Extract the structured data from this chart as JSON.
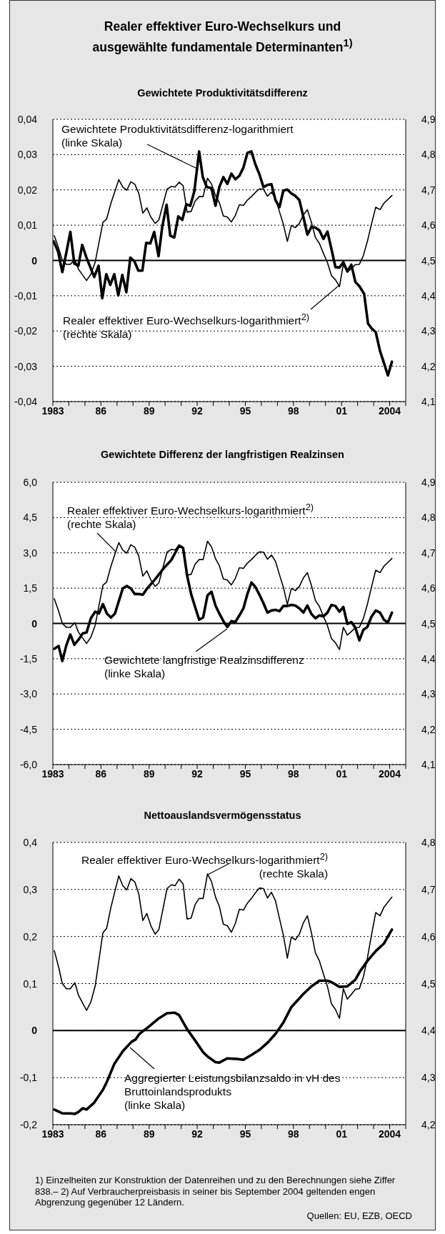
{
  "chart_data": [
    {
      "type": "line",
      "title": "Realer effektiver Euro-Wechselkurs und ausgewählte fundamentale Determinanten$^{1)}$",
      "subtitle": "Gewichtete Produktivitätsdifferenz",
      "series": [
        {
          "name": "Gewichtete Produktivitätsdifferenz-logarithmiert (linke Skala)",
          "color": "#000000",
          "x": [
            1983.05,
            1983.32,
            1983.59,
            1983.84,
            1984.09,
            1984.34,
            1984.59,
            1984.83,
            1985.08,
            1985.37,
            1985.58,
            1985.85,
            1986.08,
            1986.33,
            1986.58,
            1986.83,
            1987.08,
            1987.33,
            1987.58,
            1987.83,
            1988.08,
            1988.33,
            1988.58,
            1988.82,
            1989.07,
            1989.32,
            1989.59,
            1989.82,
            1990.09,
            1990.32,
            1990.57,
            1990.82,
            1991.07,
            1991.32,
            1991.57,
            1991.82,
            1992.12,
            1992.35,
            1992.6,
            1992.89,
            1993.14,
            1993.38,
            1993.63,
            1993.88,
            1994.13,
            1994.38,
            1994.63,
            1994.88,
            1995.13,
            1995.38,
            1995.63,
            1995.88,
            1996.13,
            1996.38,
            1996.63,
            1996.88,
            1997.13,
            1997.37,
            1997.62,
            1997.87,
            1998.12,
            1998.37,
            1998.62,
            1998.87,
            1999.12,
            1999.37,
            1999.62,
            1999.87,
            2000.12,
            2000.37,
            2000.62,
            2000.87,
            2001.11,
            2001.36,
            2001.61,
            2001.86,
            2002.11,
            2002.41,
            2002.65,
            2002.86,
            2003.13,
            2003.4,
            2003.66,
            2003.89,
            2004.14
          ],
          "values": [
            0.0054,
            0.0026,
            -0.0033,
            0.0022,
            0.0081,
            -0.0009,
            -0.0015,
            0.0044,
            0.001,
            -0.0023,
            -0.0047,
            -0.0015,
            -0.0107,
            -0.0039,
            -0.0069,
            -0.0039,
            -0.0099,
            -0.0041,
            -0.009,
            0.0008,
            -0.0002,
            -0.0029,
            -0.0029,
            0.005,
            0.0048,
            0.0081,
            0.0012,
            0.0095,
            0.0158,
            0.007,
            0.0065,
            0.0125,
            0.0115,
            0.0159,
            0.0155,
            0.0196,
            0.0309,
            0.0236,
            0.0208,
            0.0205,
            0.0155,
            0.0208,
            0.0236,
            0.0217,
            0.0246,
            0.023,
            0.024,
            0.0263,
            0.0305,
            0.0309,
            0.0272,
            0.0244,
            0.0208,
            0.0214,
            0.0216,
            0.0171,
            0.0151,
            0.0198,
            0.0201,
            0.019,
            0.0183,
            0.0171,
            0.0123,
            0.0073,
            0.0095,
            0.0093,
            0.0085,
            0.0061,
            0.0082,
            0.0032,
            -0.0019,
            -0.002,
            -0.0005,
            -0.0031,
            -0.0012,
            -0.0061,
            -0.0073,
            -0.0095,
            -0.0179,
            -0.0192,
            -0.0203,
            -0.0257,
            -0.0293,
            -0.0326,
            -0.0287
          ]
        },
        {
          "name": "Realer effektiver Euro-Wechselkurs-logarithmiert$^{2)}$ (rechte Skala)",
          "color": "#000000",
          "axis": "y2",
          "x": [
            1983.09,
            1983.36,
            1983.59,
            1983.84,
            1984.09,
            1984.37,
            1984.6,
            1985.1,
            1985.37,
            1985.64,
            1986.12,
            1986.35,
            1986.62,
            1987.11,
            1987.36,
            1987.61,
            1987.86,
            1988.11,
            1988.36,
            1988.61,
            1988.86,
            1989.11,
            1989.38,
            1989.61,
            1990.12,
            1990.39,
            1990.62,
            1990.87,
            1991.12,
            1991.37,
            1991.62,
            1991.87,
            1992.12,
            1992.37,
            1992.64,
            1992.89,
            1993.14,
            1993.38,
            1993.63,
            1993.88,
            1994.13,
            1994.38,
            1994.63,
            1994.88,
            1995.13,
            1995.38,
            1995.63,
            1995.88,
            1996.13,
            1996.38,
            1996.63,
            1996.88,
            1997.13,
            1997.37,
            1997.62,
            1997.87,
            1998.12,
            1998.37,
            1998.62,
            1998.87,
            1999.12,
            1999.37,
            1999.62,
            1999.87,
            2000.12,
            2000.37,
            2000.62,
            2000.87,
            2001.11,
            2001.36,
            2001.61,
            2001.86,
            2002.11,
            2002.36,
            2002.61,
            2002.86,
            2003.13,
            2003.4,
            2003.64,
            2004.14
          ],
          "values": [
            4.57,
            4.535,
            4.5,
            4.489,
            4.489,
            4.502,
            4.475,
            4.443,
            4.461,
            4.495,
            4.608,
            4.617,
            4.662,
            4.729,
            4.708,
            4.699,
            4.723,
            4.716,
            4.69,
            4.634,
            4.649,
            4.623,
            4.605,
            4.615,
            4.702,
            4.71,
            4.708,
            4.722,
            4.712,
            4.637,
            4.639,
            4.668,
            4.681,
            4.681,
            4.733,
            4.717,
            4.684,
            4.664,
            4.626,
            4.623,
            4.609,
            4.628,
            4.658,
            4.656,
            4.671,
            4.681,
            4.693,
            4.703,
            4.702,
            4.682,
            4.694,
            4.676,
            4.638,
            4.603,
            4.554,
            4.599,
            4.593,
            4.605,
            4.629,
            4.644,
            4.608,
            4.565,
            4.548,
            4.52,
            4.494,
            4.457,
            4.445,
            4.426,
            4.489,
            4.467,
            4.477,
            4.488,
            4.489,
            4.514,
            4.554,
            4.602,
            4.651,
            4.644,
            4.662,
            4.684
          ]
        }
      ],
      "xlim": [
        1983,
        2005
      ],
      "xticks": [
        {
          "value": 1983,
          "label": "1983"
        },
        {
          "value": 1984,
          "label": null
        },
        {
          "value": 1985,
          "label": null
        },
        {
          "value": 1986,
          "label": "86"
        },
        {
          "value": 1987,
          "label": null
        },
        {
          "value": 1988,
          "label": null
        },
        {
          "value": 1989,
          "label": "89"
        },
        {
          "value": 1990,
          "label": null
        },
        {
          "value": 1991,
          "label": null
        },
        {
          "value": 1992,
          "label": "92"
        },
        {
          "value": 1993,
          "label": null
        },
        {
          "value": 1994,
          "label": null
        },
        {
          "value": 1995,
          "label": "95"
        },
        {
          "value": 1996,
          "label": null
        },
        {
          "value": 1997,
          "label": null
        },
        {
          "value": 1998,
          "label": "98"
        },
        {
          "value": 1999,
          "label": null
        },
        {
          "value": 2000,
          "label": null
        },
        {
          "value": 2001,
          "label": "01"
        },
        {
          "value": 2002,
          "label": null
        },
        {
          "value": 2003,
          "label": null
        },
        {
          "value": 2004,
          "label": "2004"
        },
        {
          "value": 2005,
          "label": null
        }
      ],
      "ylim": [
        -0.04,
        0.04
      ],
      "yticks": [
        {
          "value": -0.04,
          "label": "-0,04"
        },
        {
          "value": -0.03,
          "label": "-0,03"
        },
        {
          "value": -0.02,
          "label": "-0,02"
        },
        {
          "value": -0.01,
          "label": "-0,01"
        },
        {
          "value": 0,
          "label": "0"
        },
        {
          "value": 0.01,
          "label": "0,01"
        },
        {
          "value": 0.02,
          "label": "0,02"
        },
        {
          "value": 0.03,
          "label": "0,03"
        },
        {
          "value": 0.04,
          "label": "0,04"
        }
      ],
      "y2lim": [
        4.1,
        4.9
      ],
      "y2ticks": [
        {
          "value": 4.1,
          "label": "4,1"
        },
        {
          "value": 4.2,
          "label": "4,2"
        },
        {
          "value": 4.3,
          "label": "4,3"
        },
        {
          "value": 4.4,
          "label": "4,4"
        },
        {
          "value": 4.5,
          "label": "4,5"
        },
        {
          "value": 4.6,
          "label": "4,6"
        },
        {
          "value": 4.7,
          "label": "4,7"
        },
        {
          "value": 4.8,
          "label": "4,8"
        },
        {
          "value": 4.9,
          "label": "4,9"
        }
      ],
      "grid": "y",
      "ref_lines": [
        {
          "axis": "y",
          "value": 0,
          "color": "#000000"
        }
      ]
    },
    {
      "type": "line",
      "title": "Gewichtete Differenz der langfristigen Realzinsen",
      "series": [
        {
          "name": "Gewichtete langfristige Realzinsdifferenz (linke Skala)",
          "color": "#000000",
          "x": [
            1983.09,
            1983.36,
            1983.59,
            1983.84,
            1984.09,
            1984.34,
            1984.6,
            1984.87,
            1985.1,
            1985.37,
            1985.64,
            1985.87,
            1986.12,
            1986.37,
            1986.62,
            1986.87,
            1987.36,
            1987.61,
            1987.86,
            1988.11,
            1988.36,
            1988.61,
            1988.86,
            1989.38,
            1989.88,
            1990.39,
            1990.87,
            1991.12,
            1991.37,
            1991.62,
            1991.87,
            1992.12,
            1992.37,
            1992.64,
            1992.89,
            1993.14,
            1993.38,
            1993.63,
            1993.88,
            1994.13,
            1994.38,
            1994.63,
            1994.88,
            1995.13,
            1995.38,
            1995.63,
            1995.88,
            1996.13,
            1996.38,
            1996.63,
            1996.88,
            1997.13,
            1997.37,
            1997.62,
            1997.87,
            1998.12,
            1998.37,
            1998.62,
            1998.87,
            1999.12,
            1999.37,
            1999.62,
            1999.87,
            2000.12,
            2000.37,
            2000.62,
            2000.87,
            2001.11,
            2001.36,
            2001.61,
            2001.86,
            2002.11,
            2002.36,
            2002.61,
            2002.86,
            2003.13,
            2003.4,
            2003.64,
            2003.89,
            2004.14
          ],
          "values": [
            -1.08,
            -0.96,
            -1.6,
            -0.93,
            -0.47,
            -0.91,
            -0.69,
            -0.42,
            -0.39,
            0.22,
            0.5,
            0.42,
            0.82,
            0.42,
            0.25,
            0.42,
            1.49,
            1.59,
            1.49,
            1.25,
            1.25,
            1.22,
            1.47,
            1.88,
            2.32,
            2.7,
            3.31,
            3.21,
            2.04,
            1.25,
            0.7,
            0.16,
            0.25,
            1.19,
            1.35,
            0.76,
            0.42,
            0.1,
            -0.15,
            0.1,
            0.06,
            0.34,
            0.64,
            1.25,
            1.74,
            1.55,
            1.22,
            0.86,
            0.46,
            0.55,
            0.58,
            0.52,
            0.74,
            0.74,
            0.79,
            0.76,
            0.64,
            0.46,
            0.76,
            0.4,
            0.22,
            0.34,
            0.3,
            0.46,
            0.79,
            0.74,
            0.5,
            0.7,
            -0.02,
            0.06,
            -0.18,
            -0.72,
            -0.27,
            -0.15,
            0.28,
            0.55,
            0.46,
            0.16,
            0.04,
            0.46
          ]
        },
        {
          "name": "Realer effektiver Euro-Wechselkurs-logarithmiert$^{2)}$ (rechte Skala)",
          "color": "#000000",
          "axis": "y2",
          "x": [
            1983.09,
            1983.36,
            1983.59,
            1983.84,
            1984.09,
            1984.37,
            1984.6,
            1985.1,
            1985.37,
            1985.64,
            1986.12,
            1986.35,
            1986.62,
            1987.11,
            1987.36,
            1987.61,
            1987.86,
            1988.11,
            1988.36,
            1988.61,
            1988.86,
            1989.11,
            1989.38,
            1989.61,
            1990.12,
            1990.39,
            1990.62,
            1990.87,
            1991.12,
            1991.37,
            1991.62,
            1991.87,
            1992.12,
            1992.37,
            1992.64,
            1992.89,
            1993.14,
            1993.38,
            1993.63,
            1993.88,
            1994.13,
            1994.38,
            1994.63,
            1994.88,
            1995.13,
            1995.38,
            1995.63,
            1995.88,
            1996.13,
            1996.38,
            1996.63,
            1996.88,
            1997.13,
            1997.37,
            1997.62,
            1997.87,
            1998.12,
            1998.37,
            1998.62,
            1998.87,
            1999.12,
            1999.37,
            1999.62,
            1999.87,
            2000.12,
            2000.37,
            2000.62,
            2000.87,
            2001.11,
            2001.36,
            2001.61,
            2001.86,
            2002.11,
            2002.36,
            2002.61,
            2002.86,
            2003.13,
            2003.4,
            2003.64,
            2004.14
          ],
          "values": [
            4.57,
            4.535,
            4.5,
            4.489,
            4.489,
            4.502,
            4.475,
            4.443,
            4.461,
            4.495,
            4.608,
            4.617,
            4.662,
            4.729,
            4.708,
            4.699,
            4.723,
            4.716,
            4.69,
            4.634,
            4.649,
            4.623,
            4.605,
            4.615,
            4.702,
            4.71,
            4.708,
            4.722,
            4.712,
            4.637,
            4.639,
            4.668,
            4.681,
            4.681,
            4.733,
            4.717,
            4.684,
            4.664,
            4.626,
            4.623,
            4.609,
            4.628,
            4.658,
            4.656,
            4.671,
            4.681,
            4.693,
            4.703,
            4.702,
            4.682,
            4.694,
            4.676,
            4.638,
            4.603,
            4.554,
            4.599,
            4.593,
            4.605,
            4.629,
            4.644,
            4.608,
            4.565,
            4.548,
            4.52,
            4.494,
            4.457,
            4.445,
            4.426,
            4.489,
            4.467,
            4.477,
            4.488,
            4.489,
            4.514,
            4.554,
            4.602,
            4.651,
            4.644,
            4.662,
            4.684
          ]
        }
      ],
      "xlim": [
        1983,
        2005
      ],
      "xticks": [
        {
          "value": 1983,
          "label": "1983"
        },
        {
          "value": 1984,
          "label": null
        },
        {
          "value": 1985,
          "label": null
        },
        {
          "value": 1986,
          "label": "86"
        },
        {
          "value": 1987,
          "label": null
        },
        {
          "value": 1988,
          "label": null
        },
        {
          "value": 1989,
          "label": "89"
        },
        {
          "value": 1990,
          "label": null
        },
        {
          "value": 1991,
          "label": null
        },
        {
          "value": 1992,
          "label": "92"
        },
        {
          "value": 1993,
          "label": null
        },
        {
          "value": 1994,
          "label": null
        },
        {
          "value": 1995,
          "label": "95"
        },
        {
          "value": 1996,
          "label": null
        },
        {
          "value": 1997,
          "label": null
        },
        {
          "value": 1998,
          "label": "98"
        },
        {
          "value": 1999,
          "label": null
        },
        {
          "value": 2000,
          "label": null
        },
        {
          "value": 2001,
          "label": "01"
        },
        {
          "value": 2002,
          "label": null
        },
        {
          "value": 2003,
          "label": null
        },
        {
          "value": 2004,
          "label": "2004"
        },
        {
          "value": 2005,
          "label": null
        }
      ],
      "ylim": [
        -6,
        6
      ],
      "yticks": [
        {
          "value": -6,
          "label": "-6,0"
        },
        {
          "value": -4.5,
          "label": "-4,5"
        },
        {
          "value": -3,
          "label": "-3,0"
        },
        {
          "value": -1.5,
          "label": "-1,5"
        },
        {
          "value": 0,
          "label": "0"
        },
        {
          "value": 1.5,
          "label": "1,5"
        },
        {
          "value": 3,
          "label": "3,0"
        },
        {
          "value": 4.5,
          "label": "4,5"
        },
        {
          "value": 6,
          "label": "6,0"
        }
      ],
      "y2lim": [
        4.1,
        4.9
      ],
      "y2ticks": [
        {
          "value": 4.1,
          "label": "4,1"
        },
        {
          "value": 4.2,
          "label": "4,2"
        },
        {
          "value": 4.3,
          "label": "4,3"
        },
        {
          "value": 4.4,
          "label": "4,4"
        },
        {
          "value": 4.5,
          "label": "4,5"
        },
        {
          "value": 4.6,
          "label": "4,6"
        },
        {
          "value": 4.7,
          "label": "4,7"
        },
        {
          "value": 4.8,
          "label": "4,8"
        },
        {
          "value": 4.9,
          "label": "4,9"
        }
      ],
      "grid": "y",
      "ref_lines": [
        {
          "axis": "y",
          "value": 0,
          "color": "#000000"
        }
      ]
    },
    {
      "type": "line",
      "title": "Nettoauslandsvermögensstatus",
      "series": [
        {
          "name": "Aggregierter Leistungsbilanzsaldo in vH des Bruttoinlandsprodukts (linke Skala)",
          "color": "#000000",
          "x": [
            1983.09,
            1983.59,
            1984.09,
            1984.37,
            1984.6,
            1984.87,
            1985.1,
            1985.58,
            1986.12,
            1986.38,
            1986.83,
            1987.36,
            1987.9,
            1988.15,
            1988.4,
            1988.86,
            1989.61,
            1990.12,
            1990.61,
            1990.87,
            1991.37,
            1991.87,
            1992.37,
            1992.64,
            1993.14,
            1993.38,
            1993.88,
            1994.38,
            1994.88,
            1995.38,
            1995.88,
            1996.38,
            1996.88,
            1997.37,
            1997.87,
            1998.62,
            1999.12,
            1999.62,
            2000.12,
            2000.37,
            2000.87,
            2001.36,
            2001.86,
            2002.15,
            2002.61,
            2003.13,
            2003.64,
            2004.14
          ],
          "values": [
            -0.168,
            -0.176,
            -0.176,
            -0.177,
            -0.173,
            -0.165,
            -0.168,
            -0.153,
            -0.126,
            -0.108,
            -0.071,
            -0.044,
            -0.024,
            -0.019,
            -0.007,
            0.005,
            0.026,
            0.037,
            0.038,
            0.033,
            0.003,
            -0.021,
            -0.046,
            -0.055,
            -0.067,
            -0.068,
            -0.059,
            -0.06,
            -0.062,
            -0.052,
            -0.041,
            -0.026,
            -0.007,
            0.017,
            0.05,
            0.078,
            0.094,
            0.106,
            0.106,
            0.103,
            0.093,
            0.094,
            0.108,
            0.126,
            0.148,
            0.169,
            0.185,
            0.215
          ]
        },
        {
          "name": "Realer effektiver Euro-Wechselkurs-logarithmiert$^{2)}$ (rechte Skala)",
          "color": "#000000",
          "axis": "y2",
          "x": [
            1983.09,
            1983.36,
            1983.59,
            1983.84,
            1984.09,
            1984.37,
            1984.6,
            1985.1,
            1985.37,
            1985.64,
            1986.12,
            1986.35,
            1986.62,
            1987.11,
            1987.36,
            1987.61,
            1987.86,
            1988.11,
            1988.36,
            1988.61,
            1988.86,
            1989.11,
            1989.38,
            1989.61,
            1990.12,
            1990.39,
            1990.62,
            1990.87,
            1991.12,
            1991.37,
            1991.62,
            1991.87,
            1992.12,
            1992.37,
            1992.64,
            1992.89,
            1993.14,
            1993.38,
            1993.63,
            1993.88,
            1994.13,
            1994.38,
            1994.63,
            1994.88,
            1995.13,
            1995.38,
            1995.63,
            1995.88,
            1996.13,
            1996.38,
            1996.63,
            1996.88,
            1997.13,
            1997.37,
            1997.62,
            1997.87,
            1998.12,
            1998.37,
            1998.62,
            1998.87,
            1999.12,
            1999.37,
            1999.62,
            1999.87,
            2000.12,
            2000.37,
            2000.62,
            2000.87,
            2001.11,
            2001.36,
            2001.61,
            2001.86,
            2002.11,
            2002.36,
            2002.61,
            2002.86,
            2003.13,
            2003.4,
            2003.64,
            2004.14
          ],
          "values": [
            4.57,
            4.535,
            4.5,
            4.489,
            4.489,
            4.502,
            4.475,
            4.443,
            4.461,
            4.495,
            4.608,
            4.617,
            4.662,
            4.729,
            4.708,
            4.699,
            4.723,
            4.716,
            4.69,
            4.634,
            4.649,
            4.623,
            4.605,
            4.615,
            4.702,
            4.71,
            4.708,
            4.722,
            4.712,
            4.637,
            4.639,
            4.668,
            4.681,
            4.681,
            4.733,
            4.717,
            4.684,
            4.664,
            4.626,
            4.623,
            4.609,
            4.628,
            4.658,
            4.656,
            4.671,
            4.681,
            4.693,
            4.703,
            4.702,
            4.682,
            4.694,
            4.676,
            4.638,
            4.603,
            4.554,
            4.599,
            4.593,
            4.605,
            4.629,
            4.644,
            4.608,
            4.565,
            4.548,
            4.52,
            4.494,
            4.457,
            4.445,
            4.426,
            4.489,
            4.467,
            4.477,
            4.488,
            4.489,
            4.514,
            4.554,
            4.602,
            4.651,
            4.644,
            4.662,
            4.684
          ]
        }
      ],
      "xlim": [
        1983,
        2005
      ],
      "xticks": [
        {
          "value": 1983,
          "label": "1983"
        },
        {
          "value": 1984,
          "label": null
        },
        {
          "value": 1985,
          "label": null
        },
        {
          "value": 1986,
          "label": "86"
        },
        {
          "value": 1987,
          "label": null
        },
        {
          "value": 1988,
          "label": null
        },
        {
          "value": 1989,
          "label": "89"
        },
        {
          "value": 1990,
          "label": null
        },
        {
          "value": 1991,
          "label": null
        },
        {
          "value": 1992,
          "label": "92"
        },
        {
          "value": 1993,
          "label": null
        },
        {
          "value": 1994,
          "label": null
        },
        {
          "value": 1995,
          "label": "95"
        },
        {
          "value": 1996,
          "label": null
        },
        {
          "value": 1997,
          "label": null
        },
        {
          "value": 1998,
          "label": "98"
        },
        {
          "value": 1999,
          "label": null
        },
        {
          "value": 2000,
          "label": null
        },
        {
          "value": 2001,
          "label": "01"
        },
        {
          "value": 2002,
          "label": null
        },
        {
          "value": 2003,
          "label": null
        },
        {
          "value": 2004,
          "label": "2004"
        },
        {
          "value": 2005,
          "label": null
        }
      ],
      "ylim": [
        -0.2,
        0.4
      ],
      "yticks": [
        {
          "value": -0.2,
          "label": "-0,2"
        },
        {
          "value": -0.1,
          "label": "-0,1"
        },
        {
          "value": 0,
          "label": "0"
        },
        {
          "value": 0.1,
          "label": "0,1"
        },
        {
          "value": 0.2,
          "label": "0,2"
        },
        {
          "value": 0.3,
          "label": "0,3"
        },
        {
          "value": 0.4,
          "label": "0,4"
        }
      ],
      "y2lim": [
        4.2,
        4.8
      ],
      "y2ticks": [
        {
          "value": 4.2,
          "label": "4,2"
        },
        {
          "value": 4.3,
          "label": "4,3"
        },
        {
          "value": 4.4,
          "label": "4,4"
        },
        {
          "value": 4.5,
          "label": "4,5"
        },
        {
          "value": 4.6,
          "label": "4,6"
        },
        {
          "value": 4.7,
          "label": "4,7"
        },
        {
          "value": 4.8,
          "label": "4,8"
        }
      ],
      "grid": "y",
      "ref_lines": [
        {
          "axis": "y",
          "value": 0,
          "color": "#000000"
        }
      ],
      "annotations": [
        "1) Einzelheiten zur Konstruktion der Datenreihen und zu den Berechnungen siehe Ziffer 838.– 2) Auf Verbraucherpreisbasis in seiner bis September 2004 geltenden engen Abgrenzung gegenüber 12 Ländern.",
        "Quellen: EU, EZB, OECD"
      ]
    }
  ]
}
